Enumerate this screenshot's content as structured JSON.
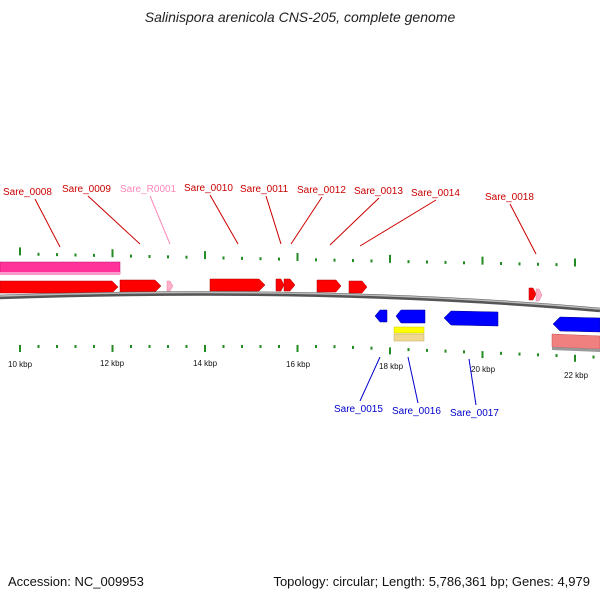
{
  "title": "Salinispora arenicola CNS-205, complete genome",
  "accession": "Accession: NC_009953",
  "summary": "Topology: circular; Length: 5,786,361 bp; Genes: 4,979",
  "colors": {
    "forward_gene": "#ff0000",
    "forward_gene_light": "#ffb0c8",
    "reverse_gene": "#0000ff",
    "forward_cds_band": "#ff3399",
    "reverse_cds_band": "#f08080",
    "yellow_band": "#ffff00",
    "tan_band": "#f0d890",
    "backbone": "#888888",
    "tick": "#228b22",
    "label_forward": "#cc0000",
    "label_rna": "#ff88bb",
    "label_reverse": "#0000cc"
  },
  "scale_labels": [
    "10 kbp",
    "12 kbp",
    "14 kbp",
    "16 kbp",
    "18 kbp",
    "20 kbp",
    "22 kbp"
  ],
  "forward_labels": [
    "Sare_0008",
    "Sare_0009",
    "Sare_R0001",
    "Sare_0010",
    "Sare_0011",
    "Sare_0012",
    "Sare_0013",
    "Sare_0014",
    "Sare_0018"
  ],
  "reverse_labels": [
    "Sare_0015",
    "Sare_0016",
    "Sare_0017"
  ]
}
